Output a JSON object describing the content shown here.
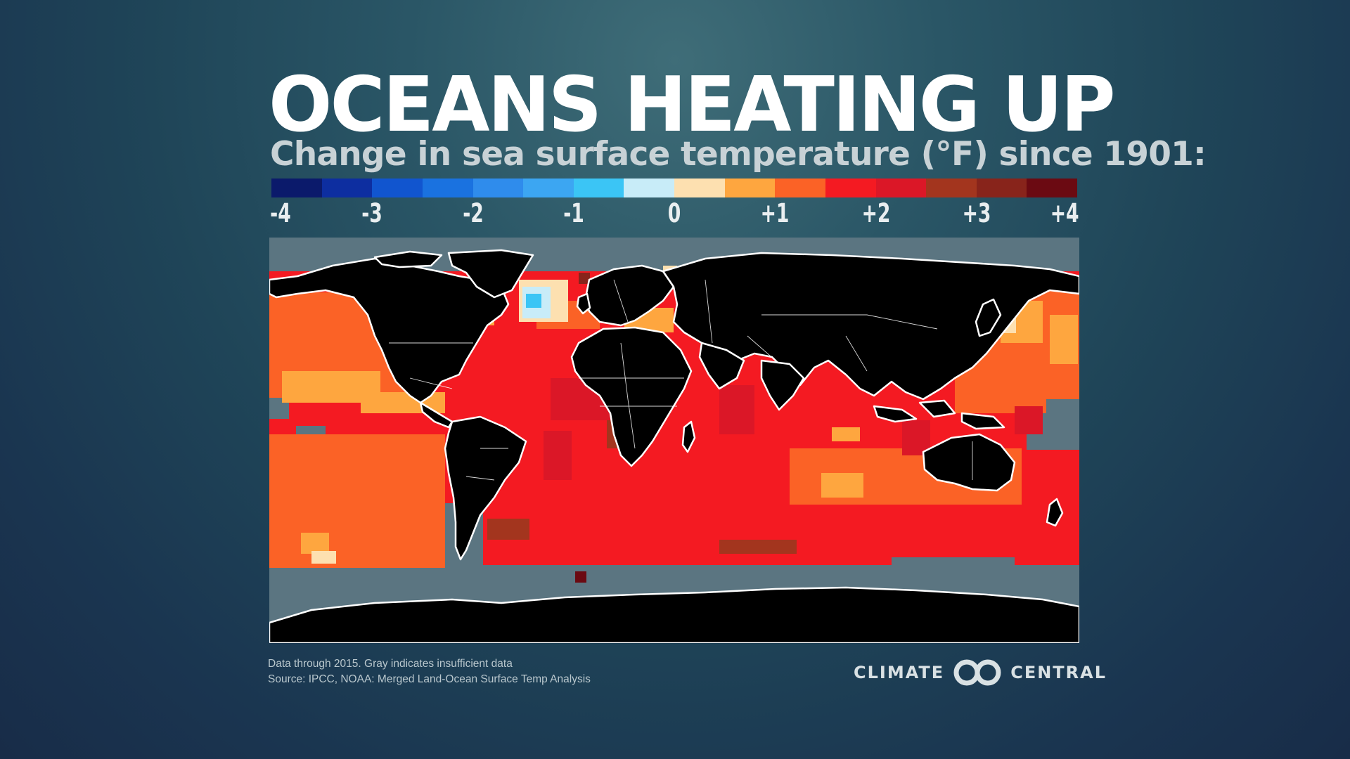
{
  "title": "OCEANS HEATING UP",
  "subtitle": "Change in sea surface temperature (°F) since 1901:",
  "legend": {
    "colors": [
      "#0b1a6b",
      "#0d2ea0",
      "#1155cf",
      "#1a72e0",
      "#2f8cec",
      "#3ca6f2",
      "#3bc5f5",
      "#c8ecf8",
      "#fde0b0",
      "#fea63f",
      "#fb6226",
      "#f41a22",
      "#db1727",
      "#a3351e",
      "#88241b",
      "#6b0a12"
    ],
    "ticks": [
      "-4",
      "-3",
      "-2",
      "-1",
      "0",
      "+1",
      "+2",
      "+3",
      "+4"
    ],
    "tick_values": [
      -4,
      -3,
      -2,
      -1,
      0,
      1,
      2,
      3,
      4
    ],
    "range": [
      -4,
      4
    ],
    "unit": "°F"
  },
  "map": {
    "land_color": "#000000",
    "insufficient_data_color": "#5b7581",
    "coastline_color": "#ffffff"
  },
  "footnotes": {
    "line1": "Data through 2015. Gray indicates insufficient data",
    "line2": "Source: IPCC, NOAA: Merged Land-Ocean Surface Temp Analysis"
  },
  "logo": {
    "left_word": "CLIMATE",
    "right_word": "CENTRAL"
  }
}
